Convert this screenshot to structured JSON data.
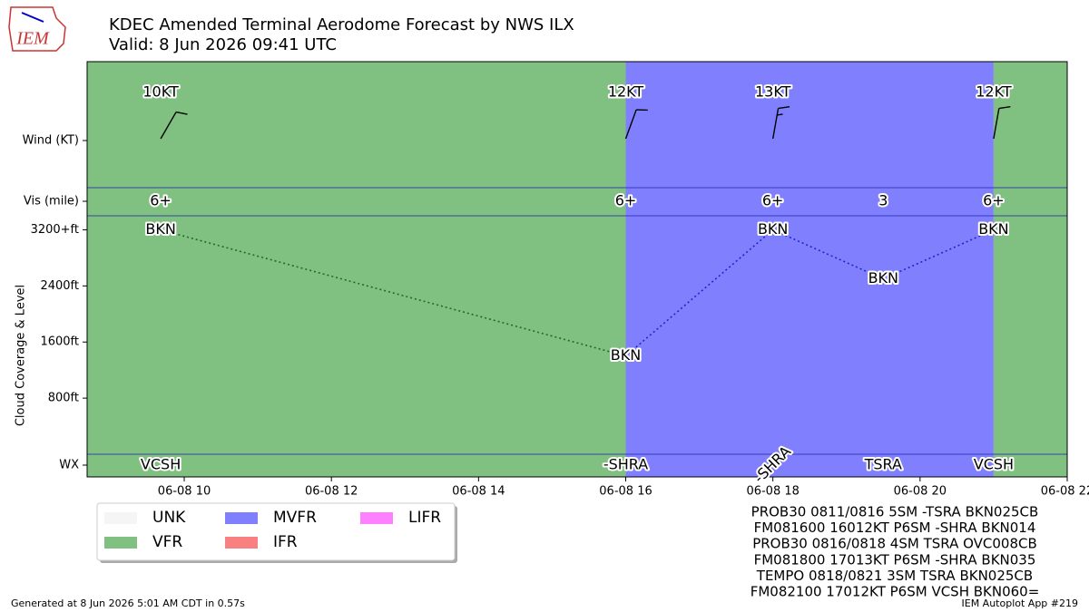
{
  "header": {
    "title": "KDEC Amended Terminal Aerodome Forecast by NWS ILX",
    "subtitle": "Valid: 8 Jun 2026 09:41 UTC",
    "logo": "IEM"
  },
  "chart_data": {
    "type": "taf",
    "xlim": [
      8.68,
      22
    ],
    "xticks": [
      {
        "value": 10,
        "label": "06-08 10"
      },
      {
        "value": 12,
        "label": "06-08 12"
      },
      {
        "value": 14,
        "label": "06-08 14"
      },
      {
        "value": 16,
        "label": "06-08 16"
      },
      {
        "value": 18,
        "label": "06-08 18"
      },
      {
        "value": 20,
        "label": "06-08 20"
      },
      {
        "value": 22,
        "label": "06-08 22"
      }
    ],
    "ylim": [
      0,
      3400
    ],
    "yticks": [
      {
        "value": 3200,
        "label": "3200+ft"
      },
      {
        "value": 2400,
        "label": "2400ft"
      },
      {
        "value": 1600,
        "label": "1600ft"
      },
      {
        "value": 800,
        "label": "800ft"
      }
    ],
    "ylabel": "Cloud Coverage & Level",
    "row_labels": {
      "wind": "Wind (KT)",
      "vis": "Vis (mile)",
      "wx": "WX"
    },
    "flight_categories": [
      {
        "name": "UNK",
        "color": "#f5f5f5"
      },
      {
        "name": "VFR",
        "color": "#80c080"
      },
      {
        "name": "MVFR",
        "color": "#8080ff"
      },
      {
        "name": "IFR",
        "color": "#f88080"
      },
      {
        "name": "LIFR",
        "color": "#ff80ff"
      }
    ],
    "periods": {
      "x": [
        9.68,
        16,
        21
      ],
      "category": [
        "VFR",
        "MVFR",
        "VFR"
      ]
    },
    "wind": {
      "x": [
        9.68,
        16,
        18,
        21
      ],
      "direction": [
        150,
        160,
        170,
        170
      ],
      "values": [
        10,
        12,
        13,
        12
      ],
      "value_labels": [
        "10KT",
        "12KT",
        "13KT",
        "12KT"
      ]
    },
    "visibility": {
      "x": [
        9.68,
        16,
        18,
        19.5,
        21
      ],
      "values": [
        6,
        6,
        6,
        3,
        6
      ],
      "value_labels": [
        "6+",
        "6+",
        "6+",
        "3",
        "6+"
      ]
    },
    "clouds": {
      "x": [
        9.68,
        16,
        18,
        19.5,
        21
      ],
      "values": [
        3200,
        1400,
        3200,
        2500,
        3200
      ],
      "labels": [
        "BKN",
        "BKN",
        "BKN",
        "BKN",
        "BKN"
      ]
    },
    "weather": {
      "x": [
        9.68,
        16,
        18,
        19.5,
        21
      ],
      "labels": [
        "VCSH",
        "-SHRA",
        "-SHRA",
        "TSRA",
        "VCSH"
      ]
    }
  },
  "taf_text": [
    "PROB30 0811/0816 5SM -TSRA BKN025CB",
    "FM081600 16012KT P6SM -SHRA BKN014",
    "PROB30 0816/0818 4SM TSRA OVC008CB",
    "FM081800 17013KT P6SM -SHRA BKN035",
    "TEMPO 0818/0821 3SM TSRA BKN025CB",
    "FM082100 17012KT P6SM VCSH BKN060="
  ],
  "footer": {
    "left": "Generated at 8 Jun 2026 5:01 AM CDT in 0.57s",
    "right": "IEM Autoplot App #219"
  }
}
